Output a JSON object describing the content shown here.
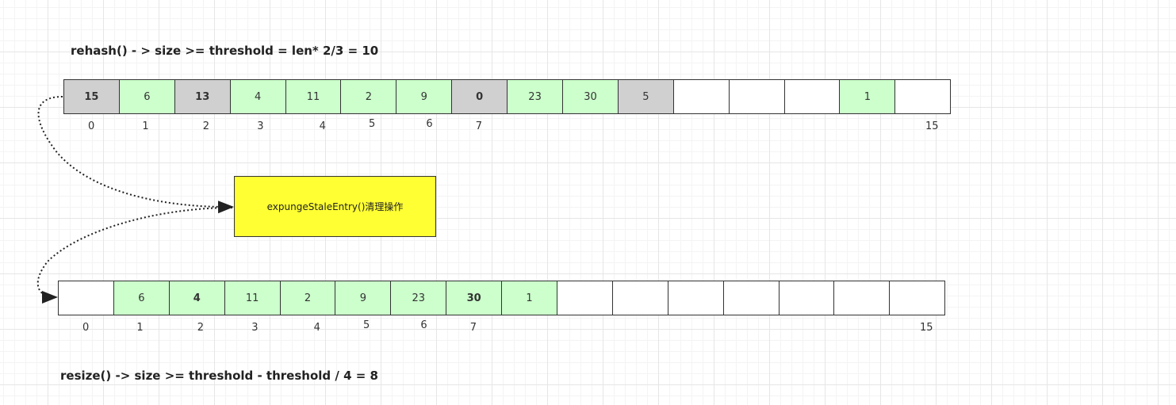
{
  "top": {
    "title": "rehash() - > size >= threshold = len* 2/3 = 10",
    "cells": [
      {
        "v": "15",
        "s": "gray",
        "b": true
      },
      {
        "v": "6",
        "s": "green"
      },
      {
        "v": "13",
        "s": "gray",
        "b": true
      },
      {
        "v": "4",
        "s": "green"
      },
      {
        "v": "11",
        "s": "green"
      },
      {
        "v": "2",
        "s": "green"
      },
      {
        "v": "9",
        "s": "green"
      },
      {
        "v": "0",
        "s": "gray",
        "b": true
      },
      {
        "v": "23",
        "s": "green"
      },
      {
        "v": "30",
        "s": "green"
      },
      {
        "v": "5",
        "s": "gray"
      },
      {
        "v": "",
        "s": "empty"
      },
      {
        "v": "",
        "s": "empty"
      },
      {
        "v": "",
        "s": "empty"
      },
      {
        "v": "1",
        "s": "green"
      },
      {
        "v": "",
        "s": "empty"
      }
    ],
    "indices": [
      "0",
      "1",
      "2",
      "3",
      "4",
      "5",
      "6",
      "7",
      "15"
    ]
  },
  "note": {
    "text": "expungeStaleEntry()清理操作",
    "color": "#ffff33"
  },
  "bottom": {
    "title": "resize() -> size >= threshold - threshold / 4 = 8",
    "cells": [
      {
        "v": "",
        "s": "empty"
      },
      {
        "v": "6",
        "s": "green"
      },
      {
        "v": "4",
        "s": "green",
        "b": true
      },
      {
        "v": "11",
        "s": "green"
      },
      {
        "v": "2",
        "s": "green"
      },
      {
        "v": "9",
        "s": "green"
      },
      {
        "v": "23",
        "s": "green"
      },
      {
        "v": "30",
        "s": "green",
        "b": true
      },
      {
        "v": "1",
        "s": "green"
      },
      {
        "v": "",
        "s": "empty"
      },
      {
        "v": "",
        "s": "empty"
      },
      {
        "v": "",
        "s": "empty"
      },
      {
        "v": "",
        "s": "empty"
      },
      {
        "v": "",
        "s": "empty"
      },
      {
        "v": "",
        "s": "empty"
      },
      {
        "v": "",
        "s": "empty"
      }
    ],
    "indices": [
      "0",
      "1",
      "2",
      "3",
      "4",
      "5",
      "6",
      "7",
      "15"
    ]
  },
  "colors": {
    "live": "#ccffcc",
    "stale": "#d0d0d0",
    "empty": "#ffffff"
  }
}
